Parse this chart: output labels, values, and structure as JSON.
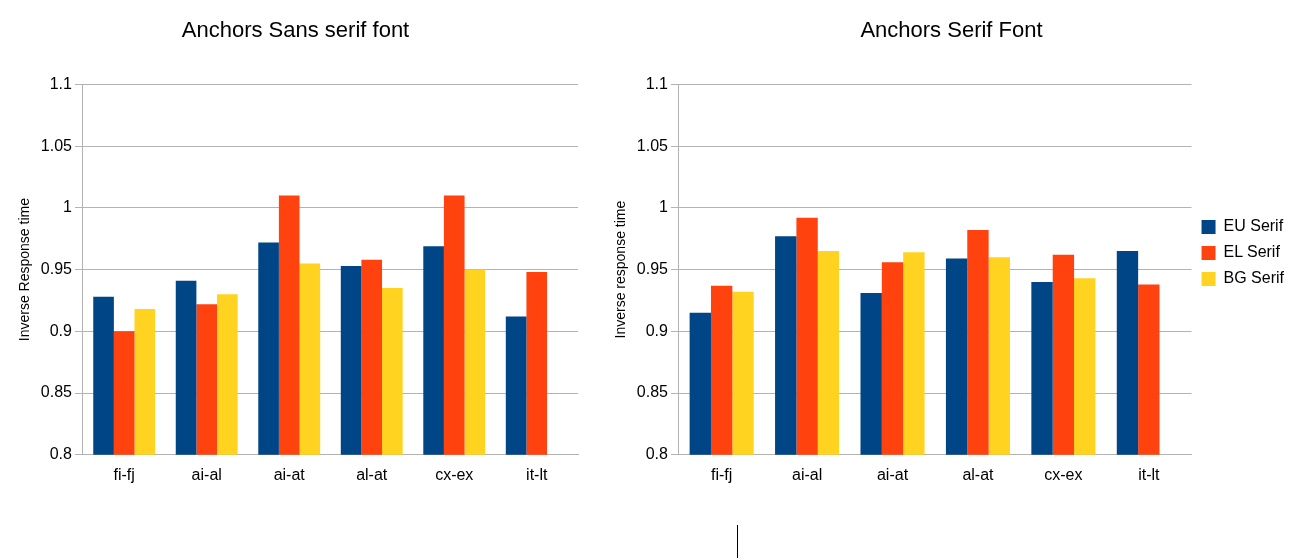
{
  "chart_data": [
    {
      "type": "bar",
      "title": "Anchors Sans serif font",
      "ylabel": "Inverse Response time",
      "categories": [
        "fi-fj",
        "ai-al",
        "ai-at",
        "al-at",
        "cx-ex",
        "it-lt"
      ],
      "series": [
        {
          "color": "#004586",
          "values": [
            0.928,
            0.941,
            0.972,
            0.953,
            0.969,
            0.912
          ]
        },
        {
          "color": "#ff420e",
          "values": [
            0.9,
            0.922,
            1.01,
            0.958,
            1.01,
            0.948
          ]
        },
        {
          "color": "#ffd320",
          "values": [
            0.918,
            0.93,
            0.955,
            0.935,
            0.95,
            null
          ]
        }
      ],
      "ylim": [
        0.8,
        1.1
      ],
      "yticks": [
        0.8,
        0.85,
        0.9,
        0.95,
        1,
        1.05,
        1.1
      ],
      "grid": "y",
      "legend": false
    },
    {
      "type": "bar",
      "title": "Anchors Serif Font",
      "ylabel": "Inverse response time",
      "categories": [
        "fi-fj",
        "ai-al",
        "ai-at",
        "al-at",
        "cx-ex",
        "it-lt"
      ],
      "series": [
        {
          "name": "EU Serif",
          "color": "#004586",
          "values": [
            0.915,
            0.977,
            0.931,
            0.959,
            0.94,
            0.965
          ]
        },
        {
          "name": "EL Serif",
          "color": "#ff420e",
          "values": [
            0.937,
            0.992,
            0.956,
            0.982,
            0.962,
            0.938
          ]
        },
        {
          "name": "BG Serif",
          "color": "#ffd320",
          "values": [
            0.932,
            0.965,
            0.964,
            0.96,
            0.943,
            null
          ]
        }
      ],
      "ylim": [
        0.8,
        1.1
      ],
      "yticks": [
        0.8,
        0.85,
        0.9,
        0.95,
        1,
        1.05,
        1.1
      ],
      "grid": "y",
      "legend": "right"
    }
  ]
}
